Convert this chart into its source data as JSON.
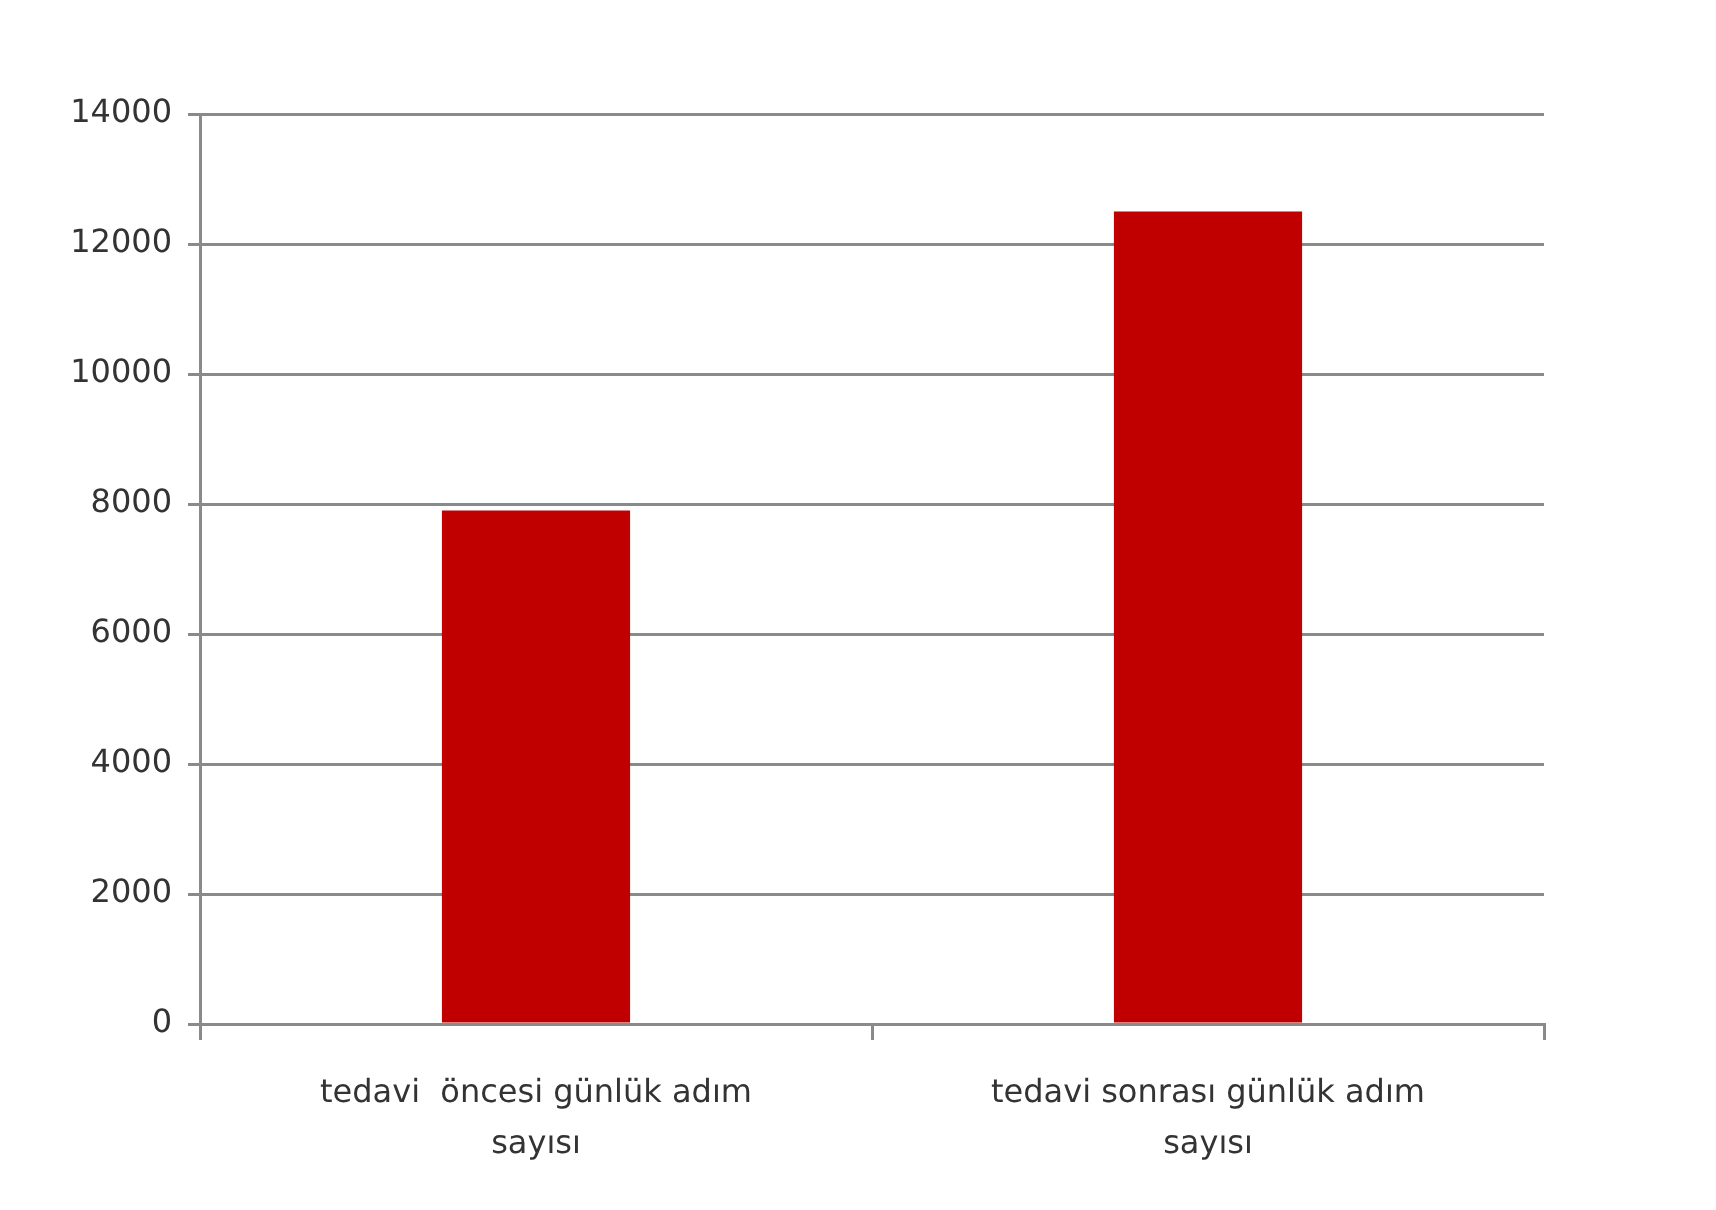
{
  "chart_data": {
    "type": "bar",
    "categories": [
      "tedavi  öncesi günlük adım sayısı",
      "tedavi sonrası günlük adım sayısı"
    ],
    "values": [
      7900,
      12500
    ],
    "color": "#c00000",
    "ylim": [
      0,
      14000
    ],
    "yticks": [
      0,
      2000,
      4000,
      6000,
      8000,
      10000,
      12000,
      14000
    ],
    "grid": "y"
  }
}
